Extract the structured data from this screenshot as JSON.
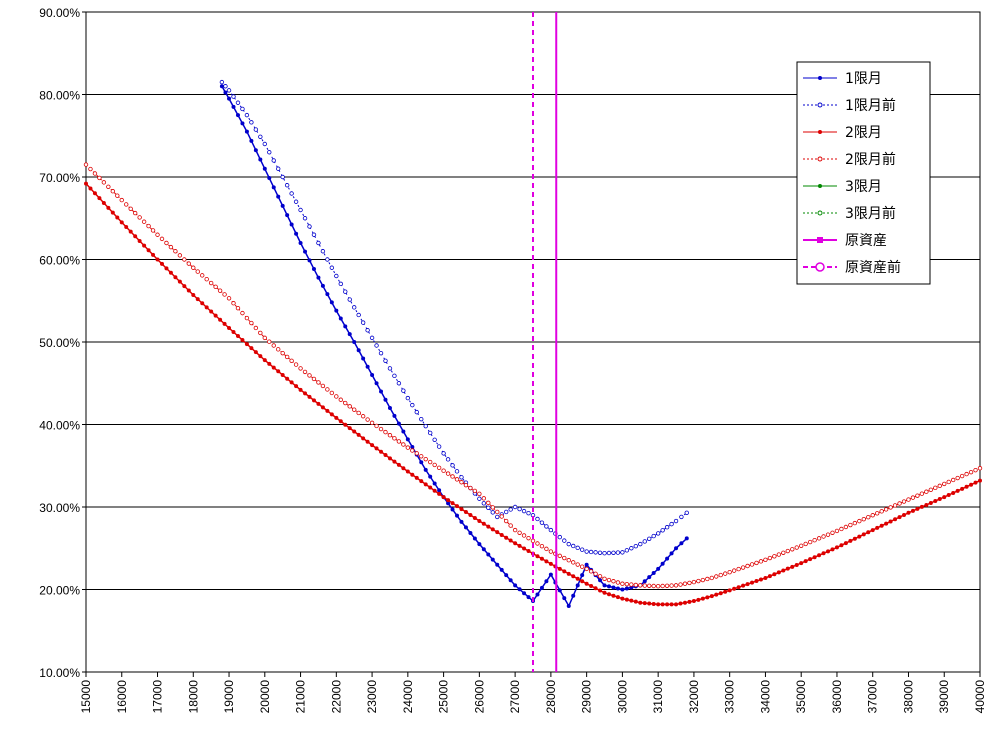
{
  "chart_data": {
    "type": "line",
    "title": "",
    "xlabel": "",
    "ylabel": "",
    "xlim": [
      15000,
      40000
    ],
    "ylim": [
      0.1,
      0.9
    ],
    "x_ticks": [
      15000,
      16000,
      17000,
      18000,
      19000,
      20000,
      21000,
      22000,
      23000,
      24000,
      25000,
      26000,
      27000,
      28000,
      29000,
      30000,
      31000,
      32000,
      33000,
      34000,
      35000,
      36000,
      37000,
      38000,
      39000,
      40000
    ],
    "x_tick_labels": [
      "15000",
      "16000",
      "17000",
      "18000",
      "19000",
      "20000",
      "21000",
      "22000",
      "23000",
      "24000",
      "25000",
      "26000",
      "27000",
      "28000",
      "29000",
      "30000",
      "31000",
      "32000",
      "33000",
      "34000",
      "35000",
      "36000",
      "37000",
      "38000",
      "39000",
      "40000"
    ],
    "y_ticks": [
      0.1,
      0.2,
      0.3,
      0.4,
      0.5,
      0.6,
      0.7,
      0.8,
      0.9
    ],
    "y_tick_labels": [
      "10.00%",
      "20.00%",
      "30.00%",
      "40.00%",
      "50.00%",
      "60.00%",
      "70.00%",
      "80.00%",
      "90.00%"
    ],
    "grid": "horizontal",
    "legend": "top-right",
    "series": [
      {
        "name": "1限月",
        "color": "#0000cc",
        "style": "solid-filled-dots",
        "points": [
          [
            18800,
            0.81
          ],
          [
            19000,
            0.795
          ],
          [
            19500,
            0.755
          ],
          [
            20000,
            0.71
          ],
          [
            20500,
            0.665
          ],
          [
            21000,
            0.62
          ],
          [
            21500,
            0.578
          ],
          [
            22000,
            0.538
          ],
          [
            22500,
            0.5
          ],
          [
            23000,
            0.46
          ],
          [
            23500,
            0.42
          ],
          [
            24000,
            0.382
          ],
          [
            24500,
            0.345
          ],
          [
            25000,
            0.312
          ],
          [
            25500,
            0.282
          ],
          [
            26000,
            0.255
          ],
          [
            26500,
            0.23
          ],
          [
            27000,
            0.205
          ],
          [
            27500,
            0.186
          ],
          [
            28000,
            0.218
          ],
          [
            28500,
            0.18
          ],
          [
            29000,
            0.23
          ],
          [
            29500,
            0.205
          ],
          [
            30000,
            0.2
          ],
          [
            30500,
            0.205
          ],
          [
            31000,
            0.225
          ],
          [
            31500,
            0.25
          ],
          [
            31800,
            0.262
          ]
        ]
      },
      {
        "name": "1限月前",
        "color": "#0000cc",
        "style": "dotted-open-dots",
        "points": [
          [
            18800,
            0.815
          ],
          [
            19000,
            0.805
          ],
          [
            19500,
            0.775
          ],
          [
            20000,
            0.74
          ],
          [
            20500,
            0.7
          ],
          [
            21000,
            0.66
          ],
          [
            21500,
            0.62
          ],
          [
            22000,
            0.58
          ],
          [
            22500,
            0.542
          ],
          [
            23000,
            0.505
          ],
          [
            23500,
            0.468
          ],
          [
            24000,
            0.432
          ],
          [
            24500,
            0.398
          ],
          [
            25000,
            0.365
          ],
          [
            25500,
            0.336
          ],
          [
            26000,
            0.31
          ],
          [
            26500,
            0.288
          ],
          [
            27000,
            0.3
          ],
          [
            27500,
            0.29
          ],
          [
            28000,
            0.272
          ],
          [
            28500,
            0.255
          ],
          [
            29000,
            0.246
          ],
          [
            29500,
            0.244
          ],
          [
            30000,
            0.245
          ],
          [
            30500,
            0.255
          ],
          [
            31000,
            0.268
          ],
          [
            31500,
            0.283
          ],
          [
            31800,
            0.293
          ]
        ]
      },
      {
        "name": "2限月",
        "color": "#dd0000",
        "style": "solid-filled-dots",
        "points": [
          [
            15000,
            0.692
          ],
          [
            16000,
            0.645
          ],
          [
            17000,
            0.6
          ],
          [
            18000,
            0.557
          ],
          [
            19000,
            0.517
          ],
          [
            20000,
            0.478
          ],
          [
            21000,
            0.442
          ],
          [
            22000,
            0.408
          ],
          [
            23000,
            0.375
          ],
          [
            24000,
            0.343
          ],
          [
            25000,
            0.312
          ],
          [
            26000,
            0.283
          ],
          [
            27000,
            0.256
          ],
          [
            28000,
            0.231
          ],
          [
            29000,
            0.207
          ],
          [
            29500,
            0.196
          ],
          [
            30000,
            0.189
          ],
          [
            30500,
            0.184
          ],
          [
            31000,
            0.182
          ],
          [
            31500,
            0.182
          ],
          [
            32000,
            0.186
          ],
          [
            32500,
            0.192
          ],
          [
            33000,
            0.199
          ],
          [
            34000,
            0.214
          ],
          [
            35000,
            0.232
          ],
          [
            36000,
            0.251
          ],
          [
            37000,
            0.272
          ],
          [
            38000,
            0.293
          ],
          [
            39000,
            0.312
          ],
          [
            40000,
            0.332
          ]
        ]
      },
      {
        "name": "2限月前",
        "color": "#dd0000",
        "style": "dotted-open-dots",
        "points": [
          [
            15000,
            0.715
          ],
          [
            16000,
            0.672
          ],
          [
            17000,
            0.63
          ],
          [
            18000,
            0.59
          ],
          [
            19000,
            0.553
          ],
          [
            20000,
            0.505
          ],
          [
            21000,
            0.468
          ],
          [
            22000,
            0.434
          ],
          [
            23000,
            0.402
          ],
          [
            24000,
            0.372
          ],
          [
            25000,
            0.344
          ],
          [
            26000,
            0.316
          ],
          [
            27000,
            0.272
          ],
          [
            28000,
            0.246
          ],
          [
            29000,
            0.225
          ],
          [
            29500,
            0.213
          ],
          [
            30000,
            0.207
          ],
          [
            30500,
            0.205
          ],
          [
            31000,
            0.204
          ],
          [
            31500,
            0.205
          ],
          [
            32000,
            0.209
          ],
          [
            32500,
            0.214
          ],
          [
            33000,
            0.221
          ],
          [
            34000,
            0.236
          ],
          [
            35000,
            0.253
          ],
          [
            36000,
            0.271
          ],
          [
            37000,
            0.29
          ],
          [
            38000,
            0.309
          ],
          [
            39000,
            0.328
          ],
          [
            40000,
            0.347
          ]
        ]
      },
      {
        "name": "3限月",
        "color": "#008800",
        "style": "solid-filled-dots",
        "points": []
      },
      {
        "name": "3限月前",
        "color": "#008800",
        "style": "dotted-open-dots",
        "points": []
      },
      {
        "name": "原資産",
        "color": "#e000e0",
        "style": "vertical-solid",
        "x_value": 28150
      },
      {
        "name": "原資産前",
        "color": "#e000e0",
        "style": "vertical-dashed",
        "x_value": 27500
      }
    ]
  }
}
